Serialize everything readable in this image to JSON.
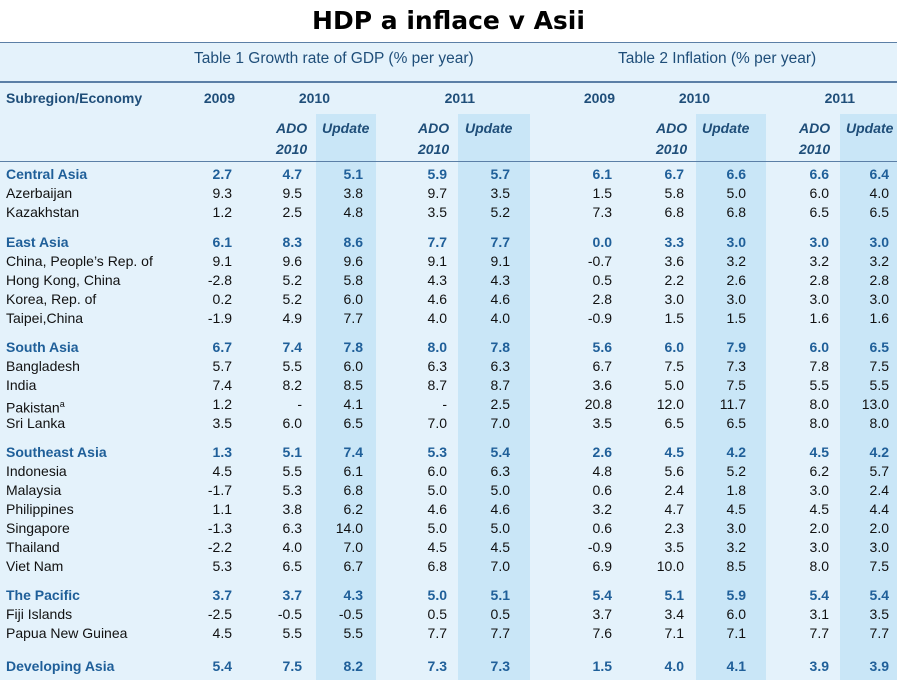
{
  "page_title": "HDP a inflace v Asii",
  "table1_caption": "Table 1  Growth rate of GDP (% per year)",
  "table2_caption": "Table 2  Inflation (% per year)",
  "header": {
    "first_col": "Subregion/Economy",
    "years": [
      "2009",
      "2010",
      "2011",
      "2009",
      "2010",
      "2011"
    ],
    "ado_label": "ADO",
    "ado_year": "2010",
    "update_label": "Update"
  },
  "rows": [
    {
      "name": "Central Asia",
      "group": true,
      "v": [
        "2.7",
        "4.7",
        "5.1",
        "5.9",
        "5.7",
        "6.1",
        "6.7",
        "6.6",
        "6.6",
        "6.4"
      ]
    },
    {
      "name": "Azerbaijan",
      "group": false,
      "v": [
        "9.3",
        "9.5",
        "3.8",
        "9.7",
        "3.5",
        "1.5",
        "5.8",
        "5.0",
        "6.0",
        "4.0"
      ]
    },
    {
      "name": "Kazakhstan",
      "group": false,
      "v": [
        "1.2",
        "2.5",
        "4.8",
        "3.5",
        "5.2",
        "7.3",
        "6.8",
        "6.8",
        "6.5",
        "6.5"
      ]
    },
    {
      "name": "East Asia",
      "group": true,
      "v": [
        "6.1",
        "8.3",
        "8.6",
        "7.7",
        "7.7",
        "0.0",
        "3.3",
        "3.0",
        "3.0",
        "3.0"
      ]
    },
    {
      "name": "China, People’s Rep. of",
      "group": false,
      "v": [
        "9.1",
        "9.6",
        "9.6",
        "9.1",
        "9.1",
        "-0.7",
        "3.6",
        "3.2",
        "3.2",
        "3.2"
      ]
    },
    {
      "name": "Hong Kong, China",
      "group": false,
      "v": [
        "-2.8",
        "5.2",
        "5.8",
        "4.3",
        "4.3",
        "0.5",
        "2.2",
        "2.6",
        "2.8",
        "2.8"
      ]
    },
    {
      "name": "Korea, Rep. of",
      "group": false,
      "v": [
        "0.2",
        "5.2",
        "6.0",
        "4.6",
        "4.6",
        "2.8",
        "3.0",
        "3.0",
        "3.0",
        "3.0"
      ]
    },
    {
      "name": "Taipei,China",
      "group": false,
      "v": [
        "-1.9",
        "4.9",
        "7.7",
        "4.0",
        "4.0",
        "-0.9",
        "1.5",
        "1.5",
        "1.6",
        "1.6"
      ]
    },
    {
      "name": "South Asia",
      "group": true,
      "v": [
        "6.7",
        "7.4",
        "7.8",
        "8.0",
        "7.8",
        "5.6",
        "6.0",
        "7.9",
        "6.0",
        "6.5"
      ]
    },
    {
      "name": "Bangladesh",
      "group": false,
      "v": [
        "5.7",
        "5.5",
        "6.0",
        "6.3",
        "6.3",
        "6.7",
        "7.5",
        "7.3",
        "7.8",
        "7.5"
      ]
    },
    {
      "name": "India",
      "group": false,
      "v": [
        "7.4",
        "8.2",
        "8.5",
        "8.7",
        "8.7",
        "3.6",
        "5.0",
        "7.5",
        "5.5",
        "5.5"
      ]
    },
    {
      "name": "Pakistan",
      "sup": "a",
      "group": false,
      "v": [
        "1.2",
        "-",
        "4.1",
        "-",
        "2.5",
        "20.8",
        "12.0",
        "11.7",
        "8.0",
        "13.0"
      ]
    },
    {
      "name": "Sri Lanka",
      "group": false,
      "v": [
        "3.5",
        "6.0",
        "6.5",
        "7.0",
        "7.0",
        "3.5",
        "6.5",
        "6.5",
        "8.0",
        "8.0"
      ]
    },
    {
      "name": "Southeast Asia",
      "group": true,
      "v": [
        "1.3",
        "5.1",
        "7.4",
        "5.3",
        "5.4",
        "2.6",
        "4.5",
        "4.2",
        "4.5",
        "4.2"
      ]
    },
    {
      "name": "Indonesia",
      "group": false,
      "v": [
        "4.5",
        "5.5",
        "6.1",
        "6.0",
        "6.3",
        "4.8",
        "5.6",
        "5.2",
        "6.2",
        "5.7"
      ]
    },
    {
      "name": "Malaysia",
      "group": false,
      "v": [
        "-1.7",
        "5.3",
        "6.8",
        "5.0",
        "5.0",
        "0.6",
        "2.4",
        "1.8",
        "3.0",
        "2.4"
      ]
    },
    {
      "name": "Philippines",
      "group": false,
      "v": [
        "1.1",
        "3.8",
        "6.2",
        "4.6",
        "4.6",
        "3.2",
        "4.7",
        "4.5",
        "4.5",
        "4.4"
      ]
    },
    {
      "name": "Singapore",
      "group": false,
      "v": [
        "-1.3",
        "6.3",
        "14.0",
        "5.0",
        "5.0",
        "0.6",
        "2.3",
        "3.0",
        "2.0",
        "2.0"
      ]
    },
    {
      "name": "Thailand",
      "group": false,
      "v": [
        "-2.2",
        "4.0",
        "7.0",
        "4.5",
        "4.5",
        "-0.9",
        "3.5",
        "3.2",
        "3.0",
        "3.0"
      ]
    },
    {
      "name": "Viet Nam",
      "group": false,
      "v": [
        "5.3",
        "6.5",
        "6.7",
        "6.8",
        "7.0",
        "6.9",
        "10.0",
        "8.5",
        "8.0",
        "7.5"
      ]
    },
    {
      "name": "The Pacific",
      "group": true,
      "v": [
        "3.7",
        "3.7",
        "4.3",
        "5.0",
        "5.1",
        "5.4",
        "5.1",
        "5.9",
        "5.4",
        "5.4"
      ]
    },
    {
      "name": "Fiji Islands",
      "group": false,
      "v": [
        "-2.5",
        "-0.5",
        "-0.5",
        "0.5",
        "0.5",
        "3.7",
        "3.4",
        "6.0",
        "3.1",
        "3.5"
      ]
    },
    {
      "name": "Papua New Guinea",
      "group": false,
      "v": [
        "4.5",
        "5.5",
        "5.5",
        "7.7",
        "7.7",
        "7.6",
        "7.1",
        "7.1",
        "7.7",
        "7.7"
      ]
    },
    {
      "name": "Developing Asia",
      "group": true,
      "v": [
        "5.4",
        "7.5",
        "8.2",
        "7.3",
        "7.3",
        "1.5",
        "4.0",
        "4.1",
        "3.9",
        "3.9"
      ]
    }
  ],
  "colors": {
    "panel": "#e4f2fb",
    "highlight": "#c9e6f7",
    "heading": "#1f4e79",
    "group": "#1f5f99"
  }
}
